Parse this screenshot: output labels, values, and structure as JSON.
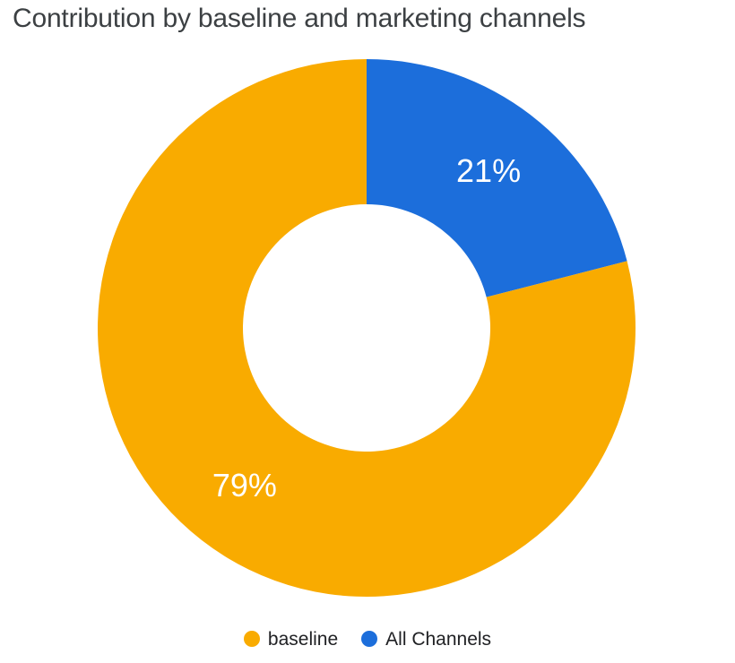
{
  "title": "Contribution by baseline and marketing channels",
  "chart_data": {
    "type": "pie",
    "subtype": "donut",
    "title": "Contribution by baseline and marketing channels",
    "start_angle": "top",
    "direction": "counterclockwise",
    "inner_radius_ratio": 0.46,
    "legend_position": "bottom",
    "value_label_color": "#FFFFFF",
    "slices": [
      {
        "label": "baseline",
        "value": 79,
        "display": "79%",
        "color": "#F9AB00"
      },
      {
        "label": "All Channels",
        "value": 21,
        "display": "21%",
        "color": "#1C6EDB"
      }
    ]
  },
  "colors": {
    "background": "#FFFFFF",
    "title_text": "#3C4043",
    "legend_text": "#202124"
  }
}
